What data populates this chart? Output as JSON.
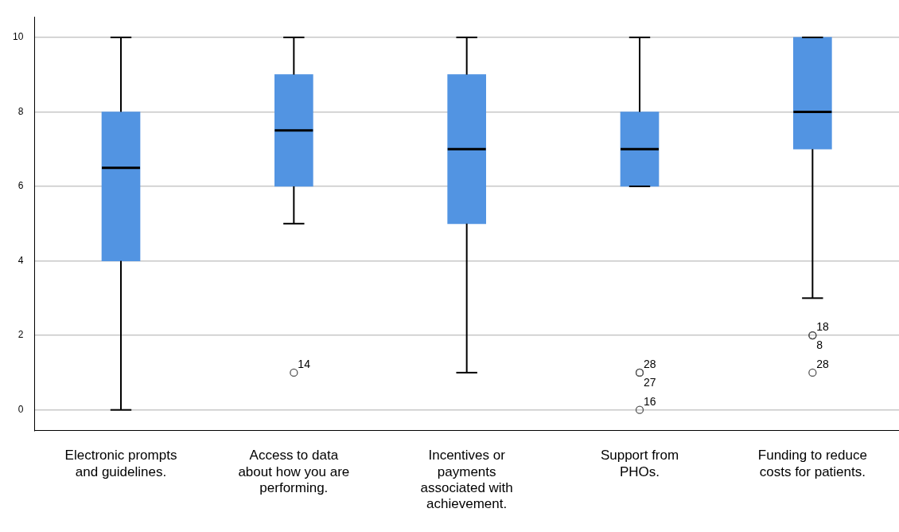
{
  "chart_data": {
    "type": "box",
    "categories": [
      "Electronic prompts and guidelines.",
      "Access to data about how you are performing.",
      "Incentives or payments associated with achievement.",
      "Support from PHOs.",
      "Funding to reduce costs for patients."
    ],
    "boxes": [
      {
        "low": 0,
        "q1": 4,
        "median": 6.5,
        "q3": 8,
        "high": 10
      },
      {
        "low": 5,
        "q1": 6,
        "median": 7.5,
        "q3": 9,
        "high": 10,
        "outliers": [
          1
        ]
      },
      {
        "low": 1,
        "q1": 5,
        "median": 7,
        "q3": 9,
        "high": 10
      },
      {
        "low": 6,
        "q1": 6,
        "median": 7,
        "q3": 8,
        "high": 10,
        "outliers": [
          1,
          1,
          0
        ]
      },
      {
        "low": 3,
        "q1": 7,
        "median": 8,
        "q3": 10,
        "high": 10,
        "outliers": [
          2,
          2,
          1
        ]
      }
    ],
    "color": "#5294e2",
    "ylim": [
      -0.55,
      10.55
    ],
    "yticks": [
      0,
      2,
      4,
      6,
      8,
      10
    ],
    "grid": "y",
    "legend": false,
    "annotations": [
      "14",
      "28",
      "27",
      "16",
      "18",
      "8",
      "28"
    ]
  }
}
